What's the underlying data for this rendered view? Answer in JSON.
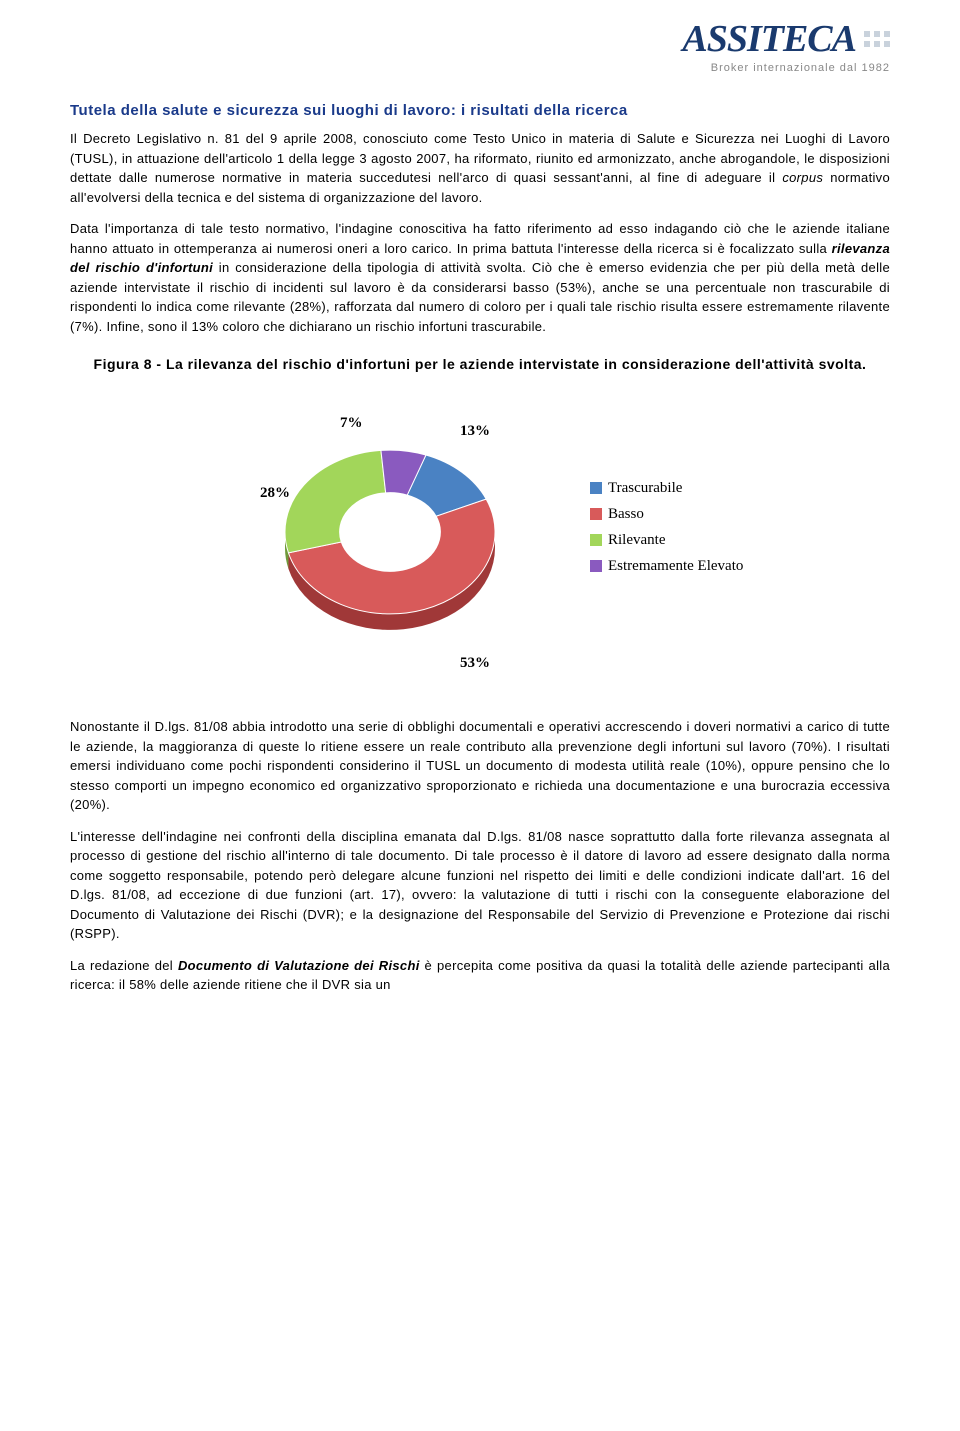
{
  "logo": {
    "text": "ASSITECA",
    "tagline": "Broker internazionale dal 1982",
    "logo_color": "#1a3a6e",
    "tagline_color": "#888888",
    "dot_color": "#c9d2dc"
  },
  "heading": "Tutela della salute e sicurezza sui luoghi di lavoro: i risultati della ricerca",
  "heading_color": "#1a3a8a",
  "p1": "Il Decreto Legislativo n. 81 del 9 aprile 2008, conosciuto come Testo Unico in materia di Salute e Sicurezza nei Luoghi di Lavoro (TUSL), in attuazione dell'articolo 1 della legge 3 agosto 2007, ha riformato, riunito ed armonizzato, anche abrogandole, le disposizioni dettate dalle numerose normative in materia succedutesi nell'arco di quasi sessant'anni, al fine di adeguare il ",
  "p1_em": "corpus",
  "p1_tail": " normativo all'evolversi della tecnica e del sistema di organizzazione del lavoro.",
  "p2a": "Data l'importanza di tale testo normativo, l'indagine conoscitiva ha fatto riferimento ad esso indagando ciò che le aziende italiane hanno attuato in ottemperanza ai numerosi oneri a loro carico. In prima battuta l'interesse della ricerca si è focalizzato sulla ",
  "p2b": "rilevanza del rischio d'infortuni",
  "p2c": " in considerazione della tipologia di attività svolta. Ciò che è emerso evidenzia che per più della metà delle aziende intervistate il rischio di incidenti sul lavoro è da considerarsi basso (53%), anche se una percentuale non trascurabile di rispondenti lo indica come rilevante (28%), rafforzata dal numero di coloro per i quali tale rischio risulta essere estremamente rilavente (7%). Infine, sono il 13% coloro che dichiarano un rischio infortuni trascurabile.",
  "figure_caption": "Figura 8 - La rilevanza del rischio d'infortuni per le aziende intervistate in considerazione dell'attività svolta.",
  "chart": {
    "type": "donut-3d",
    "slices": [
      {
        "label": "Trascurabile",
        "value": 13,
        "pct_text": "13%",
        "color": "#4a82c3",
        "color_dark": "#355e8c"
      },
      {
        "label": "Basso",
        "value": 53,
        "pct_text": "53%",
        "color": "#d85a5a",
        "color_dark": "#a03838"
      },
      {
        "label": "Rilevante",
        "value": 28,
        "pct_text": "28%",
        "color": "#a2d65a",
        "color_dark": "#6f9a3a"
      },
      {
        "label": "Estremamente Elevato",
        "value": 7,
        "pct_text": "7%",
        "color": "#8a5abf",
        "color_dark": "#5f3b88"
      }
    ],
    "inner_radius_ratio": 0.48,
    "depth": 16,
    "camera_tilt_squash": 0.78,
    "legend_marker_size": 12,
    "legend_font_size": 15,
    "pct_font_size": 15,
    "background": "#ffffff"
  },
  "p3": "Nonostante il D.lgs. 81/08 abbia introdotto una serie di obblighi documentali e operativi accrescendo i doveri normativi a carico di tutte le aziende, la maggioranza di queste lo ritiene essere un reale contributo alla prevenzione degli infortuni sul lavoro (70%). I risultati emersi individuano come pochi rispondenti considerino il TUSL un documento di modesta utilità reale (10%), oppure pensino che lo stesso comporti un impegno economico ed organizzativo sproporzionato e richieda una documentazione e una burocrazia eccessiva (20%).",
  "p4": "L'interesse dell'indagine nei confronti della disciplina emanata dal D.lgs. 81/08 nasce soprattutto dalla forte rilevanza assegnata al processo di gestione del rischio all'interno di tale documento. Di tale processo è il datore di lavoro ad essere designato dalla norma come soggetto responsabile, potendo però delegare alcune funzioni nel rispetto dei limiti e delle condizioni indicate dall'art. 16 del D.lgs. 81/08, ad eccezione di due funzioni (art. 17), ovvero: la valutazione di tutti i rischi con la conseguente elaborazione del Documento di Valutazione dei Rischi (DVR); e la designazione del Responsabile del Servizio di Prevenzione e Protezione dai rischi (RSPP).",
  "p5a": "La redazione del ",
  "p5b": "Documento di Valutazione dei Rischi",
  "p5c": " è percepita come positiva da quasi la totalità delle aziende partecipanti alla ricerca: il 58% delle aziende ritiene che il DVR sia un"
}
